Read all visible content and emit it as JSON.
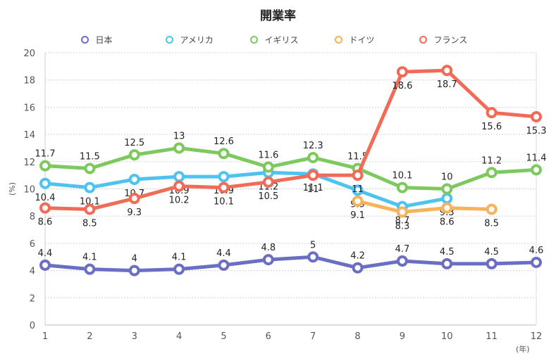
{
  "chart_data": {
    "type": "line",
    "title": "開業率",
    "xlabel": "(年)",
    "ylabel": "(%)",
    "x": [
      1,
      2,
      3,
      4,
      5,
      6,
      7,
      8,
      9,
      10,
      11,
      12
    ],
    "ylim": [
      0,
      20
    ],
    "yticks": [
      0,
      2,
      4,
      6,
      8,
      10,
      12,
      14,
      16,
      18,
      20
    ],
    "grid": true,
    "legend_position": "top-center",
    "series": [
      {
        "name": "日本",
        "color": "#6a6fc3",
        "values": [
          4.4,
          4.1,
          4.0,
          4.1,
          4.4,
          4.8,
          5.0,
          4.2,
          4.7,
          4.5,
          4.5,
          4.6
        ],
        "labels": [
          "4.4",
          "4.1",
          "4",
          "4.1",
          "4.4",
          "4.8",
          "5",
          "4.2",
          "4.7",
          "4.5",
          "4.5",
          "4.6"
        ],
        "label_pos": "above"
      },
      {
        "name": "アメリカ",
        "color": "#4fc3ef",
        "values": [
          10.4,
          10.1,
          10.7,
          10.9,
          10.9,
          11.2,
          11.1,
          9.9,
          8.7,
          9.3,
          null,
          null
        ],
        "labels": [
          "10.4",
          "10.1",
          "10.7",
          "10.9",
          "10.9",
          "11.2",
          "11.1",
          "9.9",
          "8.7",
          "9.3",
          null,
          null
        ],
        "label_pos": "below"
      },
      {
        "name": "イギリス",
        "color": "#7dc95e",
        "values": [
          11.7,
          11.5,
          12.5,
          13.0,
          12.6,
          11.6,
          12.3,
          11.5,
          10.1,
          10.0,
          11.2,
          11.4
        ],
        "labels": [
          "11.7",
          "11.5",
          "12.5",
          "13",
          "12.6",
          "11.6",
          "12.3",
          "11.5",
          "10.1",
          "10",
          "11.2",
          "11.4"
        ],
        "label_pos": "above"
      },
      {
        "name": "ドイツ",
        "color": "#f7b35a",
        "values": [
          null,
          null,
          null,
          null,
          null,
          null,
          null,
          9.1,
          8.3,
          8.6,
          8.5,
          null
        ],
        "labels": [
          null,
          null,
          null,
          null,
          null,
          null,
          null,
          "9.1",
          "8.3",
          "8.6",
          "8.5",
          null
        ],
        "label_pos": "below"
      },
      {
        "name": "フランス",
        "color": "#f26b57",
        "values": [
          8.6,
          8.5,
          9.3,
          10.2,
          10.1,
          10.5,
          11.0,
          11.0,
          18.6,
          18.7,
          15.6,
          15.3
        ],
        "labels": [
          "8.6",
          "8.5",
          "9.3",
          "10.2",
          "10.1",
          "10.5",
          "11",
          "11",
          "18.6",
          "18.7",
          "15.6",
          "15.3"
        ],
        "label_pos": "below"
      }
    ]
  }
}
